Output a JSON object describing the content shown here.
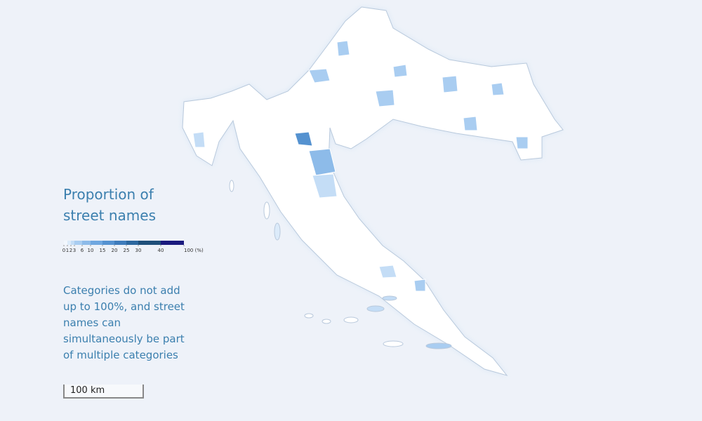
{
  "legend": {
    "title": "Proportion of street names",
    "ticks": [
      0,
      1,
      2,
      3,
      6,
      10,
      15,
      20,
      25,
      30,
      40,
      {
        "value": 100,
        "label": "100 (%)"
      }
    ],
    "colors": [
      "#f2f7fd",
      "#dcebfa",
      "#c4ddf6",
      "#a9cdf1",
      "#8dbbe9",
      "#6fa7e0",
      "#5592d0",
      "#3f7cbb",
      "#2c679f",
      "#1f4f7a",
      "#1a1a7e"
    ]
  },
  "note": "Categories do not add up to 100%, and street names can simultaneously be part of multiple categories",
  "scale_bar": "100 km"
}
